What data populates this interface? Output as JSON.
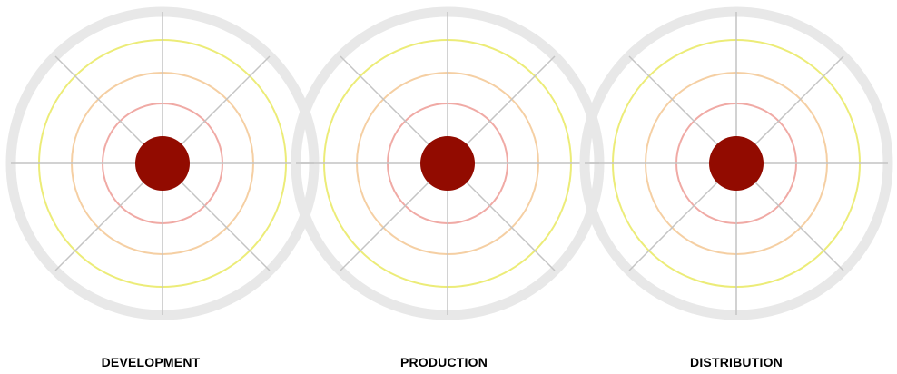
{
  "stages": [
    {
      "label": "DEVELOPMENT"
    },
    {
      "label": "PRODUCTION"
    },
    {
      "label": "DISTRIBUTION"
    }
  ],
  "colors": {
    "outer_ring": "#e8e8e8",
    "ring_yellow": "#ecec78",
    "ring_peach": "#f5cfa3",
    "ring_pink": "#f0aaa5",
    "spokes": "#c4c4c4",
    "bullseye": "#920b00",
    "label_text": "#000000"
  }
}
